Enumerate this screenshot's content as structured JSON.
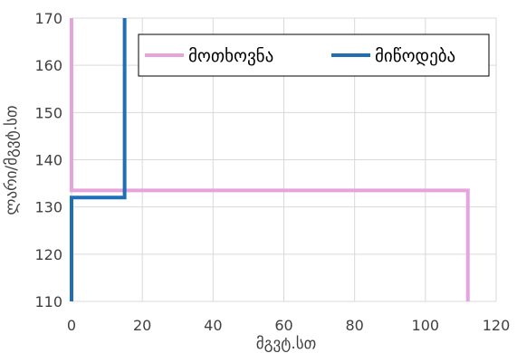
{
  "chart_data": {
    "type": "line",
    "title": "",
    "xlabel": "მგვტ.სთ",
    "ylabel": "ლარი/მგვტ.სთ",
    "xlim": [
      0,
      120
    ],
    "ylim": [
      110,
      170
    ],
    "xticks": [
      0,
      20,
      40,
      60,
      80,
      100,
      120
    ],
    "yticks": [
      110,
      120,
      130,
      140,
      150,
      160,
      170
    ],
    "grid": true,
    "legend_position": "top-right",
    "series": [
      {
        "name": "მოთხოვნა",
        "color": "#e6a3dc",
        "points": [
          [
            0,
            170
          ],
          [
            0,
            133.5
          ],
          [
            112,
            133.5
          ],
          [
            112,
            110
          ]
        ]
      },
      {
        "name": "მიწოდება",
        "color": "#1f6fb5",
        "points": [
          [
            0,
            110
          ],
          [
            0,
            132
          ],
          [
            15,
            132
          ],
          [
            15,
            170
          ]
        ]
      }
    ]
  }
}
